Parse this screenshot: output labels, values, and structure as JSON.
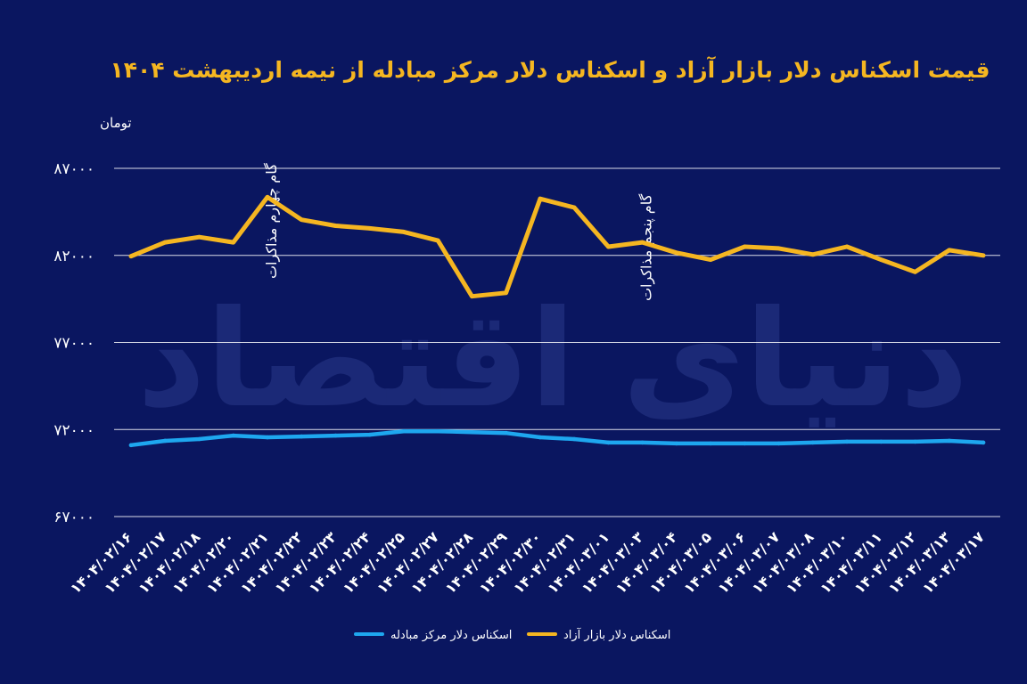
{
  "chart_data": {
    "type": "line",
    "title": "قیمت اسکناس دلار بازار آزاد و اسکناس دلار مرکز مبادله از نیمه اردیبهشت ۱۴۰۴",
    "ylabel": "تومان",
    "xlabel": "",
    "ylim": [
      67000,
      87000
    ],
    "yticks": [
      {
        "value": 87000,
        "label": "۸۷۰۰۰"
      },
      {
        "value": 82000,
        "label": "۸۲۰۰۰"
      },
      {
        "value": 77000,
        "label": "۷۷۰۰۰"
      },
      {
        "value": 72000,
        "label": "۷۲۰۰۰"
      },
      {
        "value": 67000,
        "label": "۶۷۰۰۰"
      }
    ],
    "grid": true,
    "legend_position": "bottom-center",
    "categories": [
      "۱۴۰۴/۰۲/۱۶",
      "۱۴۰۴/۰۲/۱۷",
      "۱۴۰۴/۰۲/۱۸",
      "۱۴۰۴/۰۲/۲۰",
      "۱۴۰۴/۰۲/۲۱",
      "۱۴۰۴/۰۲/۲۲",
      "۱۴۰۴/۰۲/۲۳",
      "۱۴۰۴/۰۲/۲۴",
      "۱۴۰۴/۰۲/۲۵",
      "۱۴۰۴/۰۲/۲۷",
      "۱۴۰۴/۰۲/۲۸",
      "۱۴۰۴/۰۲/۲۹",
      "۱۴۰۴/۰۲/۳۰",
      "۱۴۰۴/۰۲/۳۱",
      "۱۴۰۴/۰۳/۰۱",
      "۱۴۰۴/۰۳/۰۳",
      "۱۴۰۴/۰۳/۰۴",
      "۱۴۰۴/۰۳/۰۵",
      "۱۴۰۴/۰۳/۰۶",
      "۱۴۰۴/۰۳/۰۷",
      "۱۴۰۴/۰۳/۰۸",
      "۱۴۰۴/۰۳/۱۰",
      "۱۴۰۴/۰۳/۱۱",
      "۱۴۰۴/۰۳/۱۲",
      "۱۴۰۴/۰۳/۱۳",
      "۱۴۰۴/۰۳/۱۷"
    ],
    "series": [
      {
        "name": "اسکناس دلار مرکز مبادله",
        "color": "#1ea7ef",
        "values": [
          71100,
          71350,
          71450,
          71650,
          71550,
          71600,
          71650,
          71700,
          71900,
          71900,
          71850,
          71800,
          71550,
          71450,
          71250,
          71250,
          71200,
          71200,
          71200,
          71200,
          71250,
          71300,
          71300,
          71300,
          71350,
          71250
        ]
      },
      {
        "name": "اسکناس دلار بازار آزاد",
        "color": "#f5b621",
        "values": [
          81950,
          82750,
          83050,
          82750,
          85350,
          84050,
          83700,
          83550,
          83350,
          82850,
          79650,
          79850,
          85250,
          84750,
          82500,
          82750,
          82150,
          81750,
          82500,
          82400,
          82050,
          82500,
          81750,
          81050,
          82300,
          82000
        ]
      }
    ],
    "annotations": [
      {
        "text": "گام چهارم مذاکرات",
        "category_index": 4
      },
      {
        "text": "گام پنجم مذاکرات",
        "category_index": 15
      }
    ]
  },
  "watermark": "دنیای اقتصاد"
}
